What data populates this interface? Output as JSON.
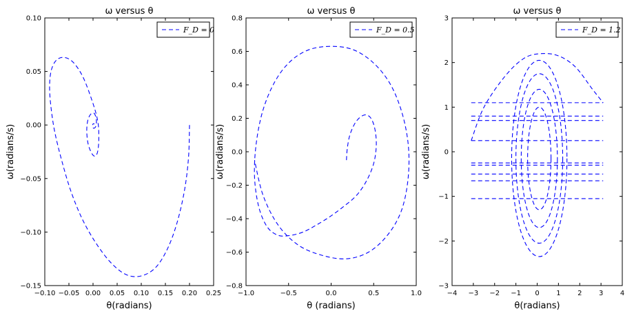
{
  "chart_data": [
    {
      "type": "line",
      "title": "ω versus θ",
      "xlabel": "θ(radians)",
      "ylabel": "ω(radians/s)",
      "xlim": [
        -0.1,
        0.25
      ],
      "ylim": [
        -0.15,
        0.1
      ],
      "xticks": [
        -0.1,
        -0.05,
        0.0,
        0.05,
        0.1,
        0.15,
        0.2,
        0.25
      ],
      "xtick_labels": [
        "−0.10",
        "−0.05",
        "0.00",
        "0.05",
        "0.10",
        "0.15",
        "0.20",
        "0.25"
      ],
      "yticks": [
        -0.15,
        -0.1,
        -0.05,
        0.0,
        0.05,
        0.1
      ],
      "ytick_labels": [
        "−0.15",
        "−0.10",
        "−0.05",
        "0.00",
        "0.05",
        "0.10"
      ],
      "legend": {
        "label": "F_D = 0",
        "placement": "top-right"
      },
      "series": [
        {
          "name": "F_D = 0",
          "style": "dashed",
          "color": "#0000ff",
          "x": [
            0.2,
            0.198,
            0.19,
            0.175,
            0.155,
            0.13,
            0.1,
            0.07,
            0.04,
            0.01,
            -0.02,
            -0.045,
            -0.065,
            -0.08,
            -0.088,
            -0.09,
            -0.086,
            -0.075,
            -0.058,
            -0.04,
            -0.02,
            0.0,
            0.01,
            0.012,
            0.01,
            0.005,
            -0.002,
            -0.01,
            -0.013,
            -0.011,
            -0.005,
            0.002,
            0.006,
            0.007,
            0.005,
            0.001,
            -0.001,
            0.0,
            0.003
          ],
          "y": [
            0.0,
            -0.03,
            -0.06,
            -0.09,
            -0.115,
            -0.133,
            -0.141,
            -0.14,
            -0.13,
            -0.113,
            -0.09,
            -0.063,
            -0.033,
            -0.005,
            0.02,
            0.038,
            0.052,
            0.061,
            0.063,
            0.058,
            0.044,
            0.02,
            0.003,
            -0.012,
            -0.024,
            -0.029,
            -0.027,
            -0.018,
            -0.006,
            0.004,
            0.01,
            0.011,
            0.007,
            0.002,
            -0.002,
            -0.003,
            -0.001,
            0.001,
            0.001
          ]
        }
      ]
    },
    {
      "type": "line",
      "title": "ω versus θ",
      "xlabel": "θ (radians)",
      "ylabel": "ω(radians/s)",
      "xlim": [
        -1.0,
        1.0
      ],
      "ylim": [
        -0.8,
        0.8
      ],
      "xticks": [
        -1.0,
        -0.5,
        0.0,
        0.5,
        1.0
      ],
      "xtick_labels": [
        "−1.0",
        "−0.5",
        "0.0",
        "0.5",
        "1.0"
      ],
      "yticks": [
        -0.8,
        -0.6,
        -0.4,
        -0.2,
        0.0,
        0.2,
        0.4,
        0.6,
        0.8
      ],
      "ytick_labels": [
        "−0.8",
        "−0.6",
        "−0.4",
        "−0.2",
        "0.0",
        "0.2",
        "0.4",
        "0.6",
        "0.8"
      ],
      "legend": {
        "label": "F_D = 0.5",
        "placement": "top-right"
      },
      "series": [
        {
          "name": "F_D = 0.5",
          "style": "dashed",
          "color": "#0000ff",
          "spiral_start": [
            0.18,
            -0.05
          ],
          "x": [
            0.18,
            0.19,
            0.22,
            0.28,
            0.35,
            0.42,
            0.48,
            0.52,
            0.53,
            0.5,
            0.42,
            0.3,
            0.14,
            -0.02,
            -0.18,
            -0.33,
            -0.48,
            -0.62,
            -0.75,
            -0.85,
            -0.9,
            -0.88,
            -0.8,
            -0.66,
            -0.48,
            -0.26,
            0.0,
            0.26,
            0.5,
            0.7,
            0.84,
            0.91,
            0.9,
            0.82,
            0.66,
            0.44,
            0.18,
            -0.1,
            -0.38,
            -0.62,
            -0.8,
            -0.9
          ],
          "y": [
            -0.05,
            0.02,
            0.1,
            0.17,
            0.21,
            0.22,
            0.19,
            0.12,
            0.03,
            -0.07,
            -0.17,
            -0.26,
            -0.33,
            -0.39,
            -0.44,
            -0.48,
            -0.5,
            -0.5,
            -0.45,
            -0.33,
            -0.15,
            0.05,
            0.25,
            0.42,
            0.54,
            0.61,
            0.63,
            0.61,
            0.53,
            0.4,
            0.22,
            0.02,
            -0.18,
            -0.36,
            -0.5,
            -0.6,
            -0.64,
            -0.62,
            -0.56,
            -0.44,
            -0.26,
            -0.05
          ]
        }
      ]
    },
    {
      "type": "line",
      "title": "ω versus θ",
      "xlabel": "θ(radians)",
      "ylabel": "ω(radians/s)",
      "xlim": [
        -4,
        4
      ],
      "ylim": [
        -3,
        3
      ],
      "xticks": [
        -4,
        -3,
        -2,
        -1,
        0,
        1,
        2,
        3,
        4
      ],
      "xtick_labels": [
        "−4",
        "−3",
        "−2",
        "−1",
        "0",
        "1",
        "2",
        "3",
        "4"
      ],
      "yticks": [
        -3,
        -2,
        -1,
        0,
        1,
        2,
        3
      ],
      "ytick_labels": [
        "−3",
        "−2",
        "−1",
        "0",
        "1",
        "2",
        "3"
      ],
      "legend": {
        "label": "F_D = 1.2",
        "placement": "top-right"
      },
      "series": [
        {
          "name": "F_D = 1.2",
          "style": "dashed",
          "color": "#0000ff",
          "wrap_levels": [
            1.1,
            0.8,
            0.7,
            0.25,
            -0.25,
            -0.3,
            -0.5,
            -0.65,
            -1.05
          ],
          "x": [
            -3.1,
            -2.5,
            -1.5,
            -0.6,
            0.2,
            1.0,
            1.8,
            2.6,
            3.1
          ],
          "y": [
            0.25,
            1.0,
            1.7,
            2.1,
            2.2,
            2.15,
            1.9,
            1.4,
            1.1
          ]
        }
      ]
    }
  ]
}
